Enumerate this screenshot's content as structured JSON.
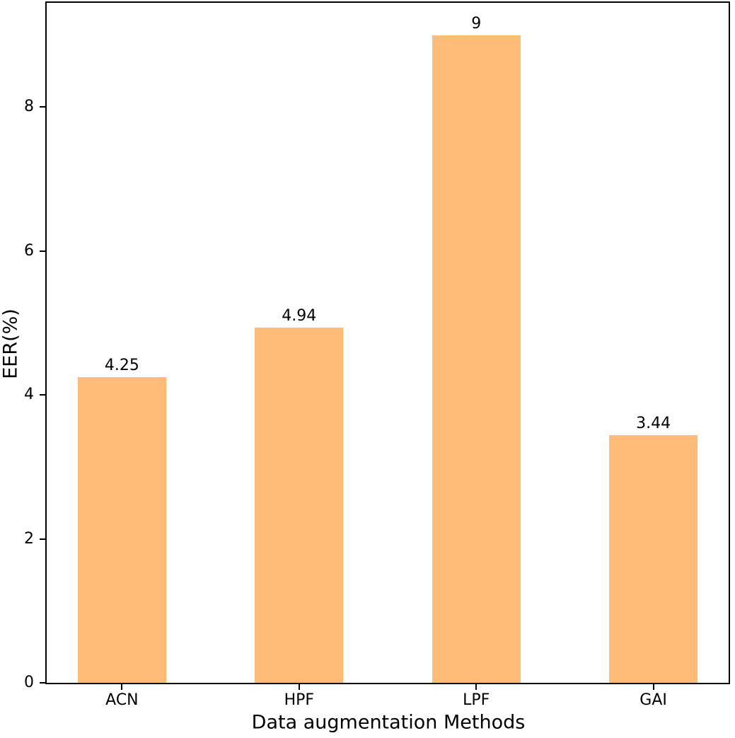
{
  "chart_data": {
    "type": "bar",
    "categories": [
      "ACN",
      "HPF",
      "LPF",
      "GAI"
    ],
    "values": [
      4.25,
      4.94,
      9,
      3.44
    ],
    "bar_labels": [
      "4.25",
      "4.94",
      "9",
      "3.44"
    ],
    "title": "",
    "xlabel": "Data augmentation Methods",
    "ylabel": "EER(%)",
    "ylim": [
      0,
      9.45
    ],
    "yticks": [
      0,
      2,
      4,
      6,
      8
    ],
    "bar_color": "#FFBB78",
    "axis_color": "#000000",
    "text_color": "#000000",
    "background_color": "#FFFFFF",
    "grid": false,
    "legend_position": "none"
  }
}
